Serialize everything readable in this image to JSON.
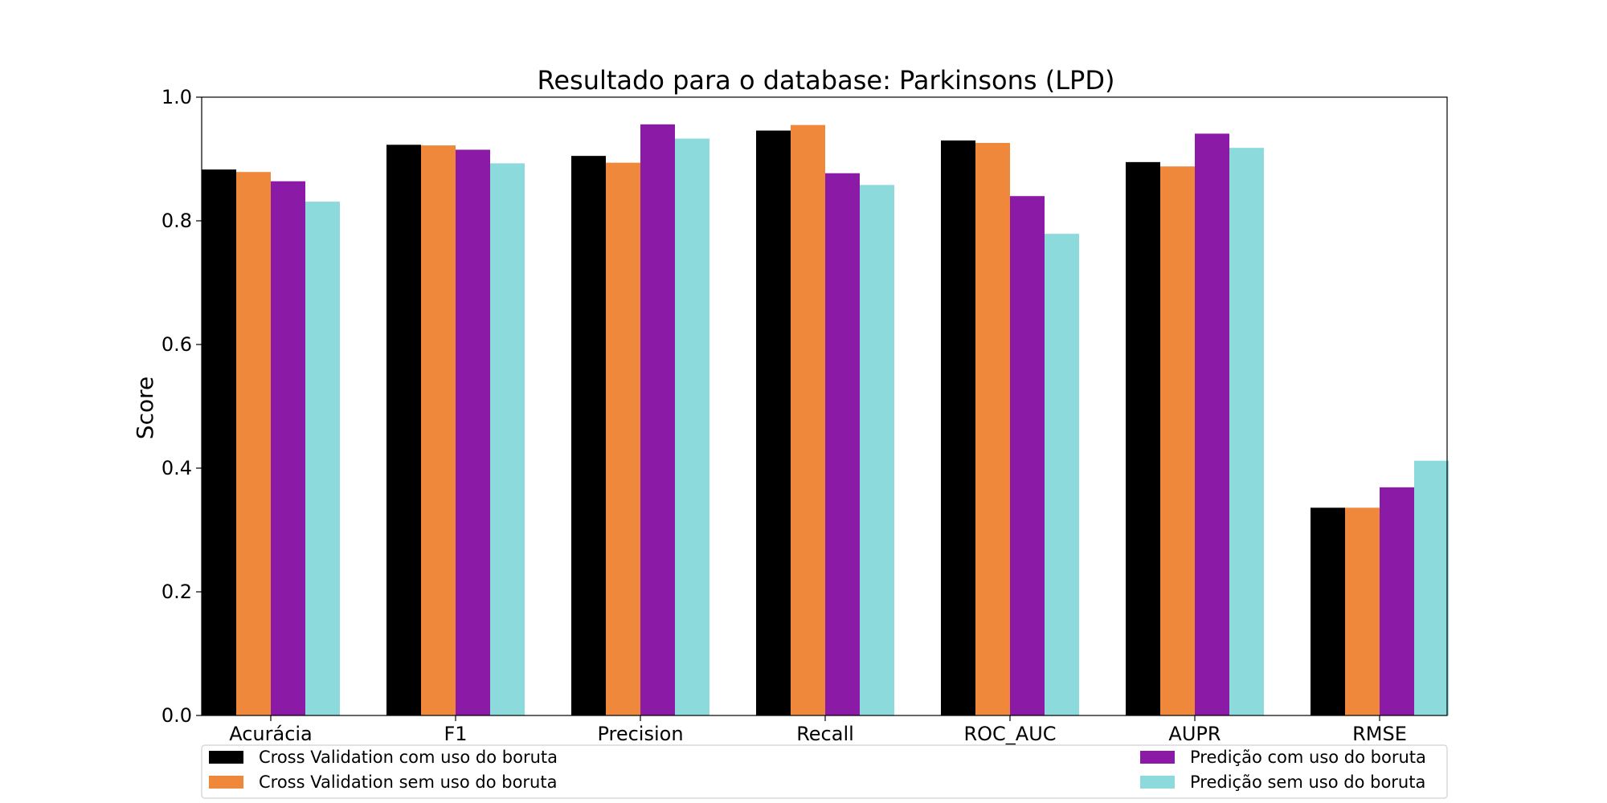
{
  "chart_data": {
    "type": "bar",
    "title": "Resultado para o database: Parkinsons (LPD)",
    "xlabel": "",
    "ylabel": "Score",
    "ylim": [
      0,
      1.0
    ],
    "yticks": [
      "0.0",
      "0.2",
      "0.4",
      "0.6",
      "0.8",
      "1.0"
    ],
    "grid": false,
    "legend_position": "bottom",
    "categories": [
      "Acurácia",
      "F1",
      "Precision",
      "Recall",
      "ROC_AUC",
      "AUPR",
      "RMSE"
    ],
    "series": [
      {
        "name": "Cross Validation com uso do boruta",
        "color": "#000000",
        "values": [
          0.883,
          0.923,
          0.905,
          0.946,
          0.93,
          0.895,
          0.336
        ]
      },
      {
        "name": "Cross Validation sem uso do boruta",
        "color": "#f0883c",
        "values": [
          0.879,
          0.922,
          0.894,
          0.955,
          0.926,
          0.888,
          0.336
        ]
      },
      {
        "name": "Predição com uso do boruta",
        "color": "#8b1aa6",
        "values": [
          0.864,
          0.915,
          0.956,
          0.877,
          0.84,
          0.941,
          0.369
        ]
      },
      {
        "name": "Predição sem uso do boruta",
        "color": "#8cdadb",
        "values": [
          0.831,
          0.893,
          0.933,
          0.858,
          0.779,
          0.918,
          0.412
        ]
      }
    ]
  }
}
